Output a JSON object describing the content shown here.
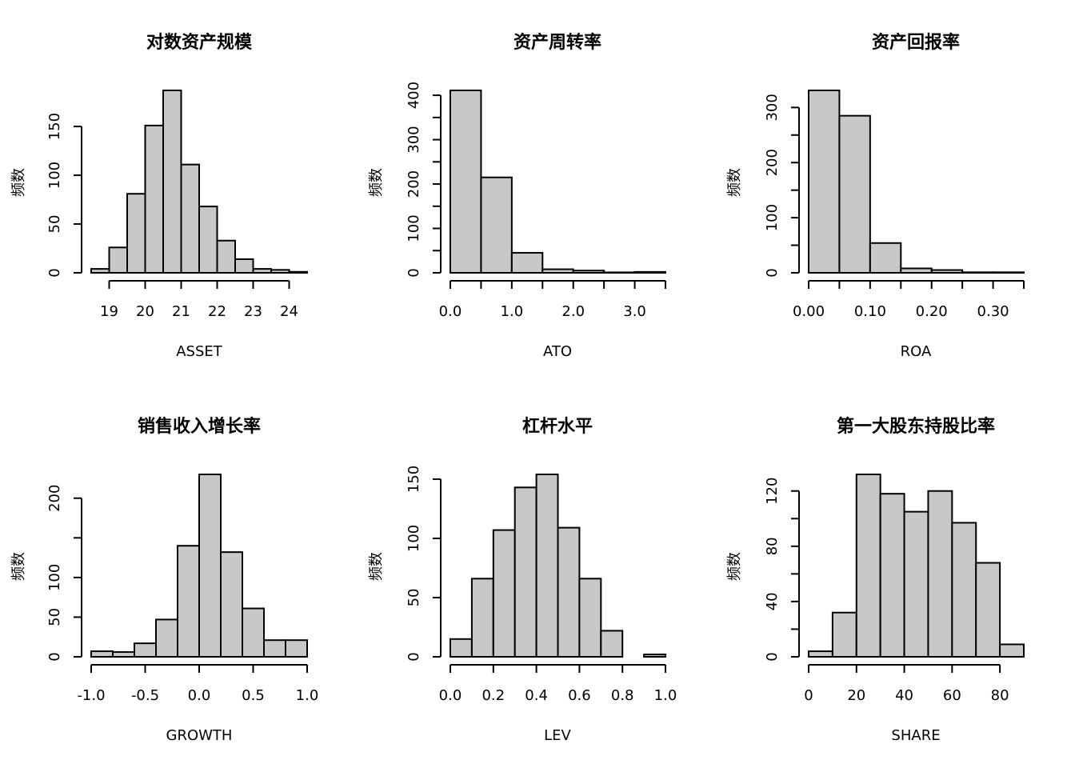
{
  "figure": {
    "bar_color": "#c8c8c8",
    "edge_color": "#000000",
    "background": "#ffffff"
  },
  "chart_data": [
    {
      "type": "bar",
      "title": "对数资产规模",
      "xlabel": "ASSET",
      "ylabel": "频数",
      "bin_edges": [
        18.5,
        19.0,
        19.5,
        20.0,
        20.5,
        21.0,
        21.5,
        22.0,
        22.5,
        23.0,
        23.5,
        24.0,
        24.5
      ],
      "values": [
        4,
        26,
        81,
        151,
        187,
        111,
        68,
        33,
        14,
        4,
        3,
        1
      ],
      "xlim": [
        18.5,
        24.5
      ],
      "ylim": [
        0,
        187
      ],
      "xticks": [
        19,
        20,
        21,
        22,
        23,
        24
      ],
      "xtick_labels": [
        "19",
        "20",
        "21",
        "22",
        "23",
        "24"
      ],
      "yticks": [
        0,
        50,
        100,
        150
      ],
      "ytick_labels": [
        "0",
        "50",
        "100",
        "150"
      ],
      "yaxis_end": 150
    },
    {
      "type": "bar",
      "title": "资产周转率",
      "xlabel": "ATO",
      "ylabel": "频数",
      "bin_edges": [
        0.0,
        0.5,
        1.0,
        1.5,
        2.0,
        2.5,
        3.0,
        3.5
      ],
      "values": [
        411,
        215,
        45,
        8,
        5,
        1,
        2
      ],
      "xlim": [
        0.0,
        3.5
      ],
      "ylim": [
        0,
        411
      ],
      "xticks": [
        0.0,
        1.0,
        2.0,
        3.0
      ],
      "xtick_labels": [
        "0.0",
        "1.0",
        "2.0",
        "3.0"
      ],
      "yticks": [
        0,
        100,
        200,
        300,
        400
      ],
      "ytick_labels": [
        "0",
        "100",
        "200",
        "300",
        "400"
      ],
      "minor_xticks": [
        0.5,
        1.5,
        2.5,
        3.5
      ],
      "minor_yticks": [
        50,
        150,
        250,
        350
      ],
      "yaxis_end": 400
    },
    {
      "type": "bar",
      "title": "资产回报率",
      "xlabel": "ROA",
      "ylabel": "频数",
      "bin_edges": [
        0.0,
        0.05,
        0.1,
        0.15,
        0.2,
        0.25,
        0.3,
        0.35
      ],
      "values": [
        331,
        285,
        54,
        8,
        5,
        1,
        1
      ],
      "xlim": [
        0.0,
        0.35
      ],
      "ylim": [
        0,
        331
      ],
      "xticks": [
        0.0,
        0.1,
        0.2,
        0.3
      ],
      "xtick_labels": [
        "0.00",
        "0.10",
        "0.20",
        "0.30"
      ],
      "yticks": [
        0,
        100,
        200,
        300
      ],
      "ytick_labels": [
        "0",
        "100",
        "200",
        "300"
      ],
      "minor_xticks": [
        0.05,
        0.15,
        0.25,
        0.35
      ],
      "minor_yticks": [
        50,
        150,
        250
      ],
      "yaxis_end": 300
    },
    {
      "type": "bar",
      "title": "销售收入增长率",
      "xlabel": "GROWTH",
      "ylabel": "频数",
      "bin_edges": [
        -1.0,
        -0.8,
        -0.6,
        -0.4,
        -0.2,
        0.0,
        0.2,
        0.4,
        0.6,
        0.8,
        1.0
      ],
      "values": [
        7,
        6,
        17,
        47,
        140,
        230,
        132,
        61,
        21,
        21
      ],
      "xlim": [
        -1.0,
        1.0
      ],
      "ylim": [
        0,
        230
      ],
      "xticks": [
        -1.0,
        -0.5,
        0.0,
        0.5,
        1.0
      ],
      "xtick_labels": [
        "-1.0",
        "-0.5",
        "0.0",
        "0.5",
        "1.0"
      ],
      "yticks": [
        0,
        50,
        100,
        200
      ],
      "ytick_labels": [
        "0",
        "50",
        "100",
        "200"
      ],
      "minor_yticks": [
        150
      ],
      "yaxis_end": 200
    },
    {
      "type": "bar",
      "title": "杠杆水平",
      "xlabel": "LEV",
      "ylabel": "频数",
      "bin_edges": [
        0.0,
        0.1,
        0.2,
        0.3,
        0.4,
        0.5,
        0.6,
        0.7,
        0.8,
        0.9,
        1.0
      ],
      "values": [
        15,
        66,
        107,
        143,
        154,
        109,
        66,
        22,
        0,
        2
      ],
      "xlim": [
        0.0,
        1.0
      ],
      "ylim": [
        0,
        154
      ],
      "xticks": [
        0.0,
        0.2,
        0.4,
        0.6,
        0.8,
        1.0
      ],
      "xtick_labels": [
        "0.0",
        "0.2",
        "0.4",
        "0.6",
        "0.8",
        "1.0"
      ],
      "yticks": [
        0,
        50,
        100,
        150
      ],
      "ytick_labels": [
        "0",
        "50",
        "100",
        "150"
      ],
      "yaxis_end": 150
    },
    {
      "type": "bar",
      "title": "第一大股东持股比率",
      "xlabel": "SHARE",
      "ylabel": "频数",
      "bin_edges": [
        0,
        10,
        20,
        30,
        40,
        50,
        60,
        70,
        80,
        90
      ],
      "values": [
        4,
        32,
        132,
        118,
        105,
        120,
        97,
        68,
        9
      ],
      "xlim": [
        0,
        90
      ],
      "ylim": [
        0,
        132
      ],
      "xticks": [
        0,
        20,
        40,
        60,
        80
      ],
      "xtick_labels": [
        "0",
        "20",
        "40",
        "60",
        "80"
      ],
      "yticks": [
        0,
        40,
        80,
        120
      ],
      "ytick_labels": [
        "0",
        "40",
        "80",
        "120"
      ],
      "minor_yticks": [
        20,
        60,
        100
      ],
      "yaxis_end": 120
    }
  ]
}
